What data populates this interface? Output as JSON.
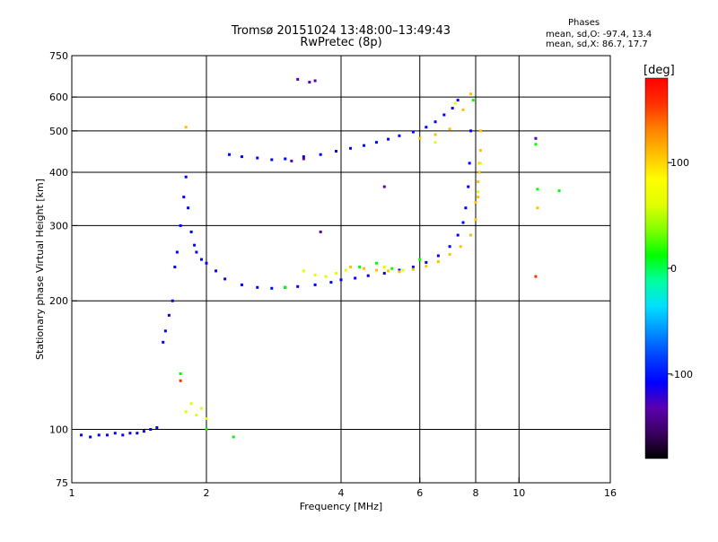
{
  "header": {
    "title_line1": "Tromsø 20151024 13:48:00–13:49:43",
    "title_line2": "RwPretec (8p)"
  },
  "phases": {
    "title": "Phases",
    "o_label": "mean, sd,O:",
    "o_values": "-97.4, 13.4",
    "x_label": "mean, sd,X:",
    "x_values": "86.7, 17.7"
  },
  "colorbar": {
    "title": "[deg]",
    "min": -180,
    "max": 180,
    "ticks": [
      {
        "value": 100,
        "label": "100"
      },
      {
        "value": 0,
        "label": "0"
      },
      {
        "value": -100,
        "label": "-100"
      }
    ],
    "colors": [
      "#000000",
      "#3a0060",
      "#5a00b0",
      "#0000ff",
      "#0040ff",
      "#0090ff",
      "#00e0ff",
      "#00ffa0",
      "#00ff00",
      "#80ff00",
      "#e0ff00",
      "#ffff00",
      "#ffc000",
      "#ff8000",
      "#ff3000",
      "#ff0000"
    ]
  },
  "chart_data": {
    "type": "scatter",
    "xlabel": "Frequency [MHz]",
    "ylabel": "Stationary phase Virtual Height [km]",
    "xscale": "log",
    "yscale": "log",
    "xlim": [
      1,
      16
    ],
    "ylim": [
      75,
      750
    ],
    "grid": true,
    "x_ticks": [
      1,
      2,
      4,
      6,
      8,
      10,
      16
    ],
    "y_ticks": [
      75,
      100,
      200,
      300,
      400,
      500,
      600,
      750
    ],
    "grid_x": [
      2,
      4,
      6,
      8,
      10
    ],
    "grid_y": [
      100,
      200,
      300,
      400,
      500,
      600
    ],
    "series": [
      {
        "phase": -100,
        "x": [
          1.05,
          1.1,
          1.15,
          1.2,
          1.25,
          1.3,
          1.35,
          1.4,
          1.45,
          1.5,
          1.55,
          1.6,
          1.62,
          1.65,
          1.68,
          1.7,
          1.72,
          1.75,
          1.78,
          1.8,
          1.82,
          1.85,
          1.88,
          1.9,
          1.95,
          2.0,
          2.1,
          2.2,
          2.4,
          2.6,
          2.8,
          3.0,
          3.2,
          3.5,
          3.8,
          4.0,
          4.3,
          4.6,
          5.0,
          5.4,
          5.8,
          6.2,
          6.6,
          7.0,
          7.3,
          7.5,
          7.6,
          7.7,
          7.75,
          7.8,
          2.25,
          2.4,
          2.6,
          2.8,
          3.0,
          3.3,
          3.6,
          3.9,
          4.2,
          4.5,
          4.8,
          5.1,
          5.4,
          5.8,
          6.2,
          6.5,
          6.8,
          7.1,
          7.3
        ],
        "y": [
          97,
          96,
          97,
          97,
          98,
          97,
          98,
          98,
          99,
          100,
          101,
          160,
          170,
          185,
          200,
          240,
          260,
          300,
          350,
          390,
          330,
          290,
          270,
          260,
          250,
          245,
          235,
          225,
          218,
          215,
          214,
          215,
          216,
          218,
          221,
          224,
          226,
          229,
          232,
          236,
          240,
          246,
          255,
          268,
          285,
          305,
          330,
          370,
          420,
          500,
          440,
          435,
          432,
          428,
          430,
          435,
          440,
          448,
          455,
          462,
          470,
          478,
          487,
          497,
          510,
          525,
          545,
          565,
          590
        ]
      },
      {
        "phase": 100,
        "x": [
          1.8,
          4.2,
          4.5,
          4.8,
          5.1,
          5.4,
          5.8,
          6.2,
          6.6,
          7.0,
          7.4,
          7.8,
          8.0,
          8.1,
          8.15,
          8.2,
          8.2,
          8.15,
          8.1,
          8.0,
          6.0,
          6.5,
          7.0,
          7.5,
          7.8,
          11.0
        ],
        "y": [
          510,
          240,
          238,
          236,
          235,
          234,
          237,
          241,
          247,
          257,
          268,
          285,
          310,
          350,
          400,
          450,
          500,
          420,
          380,
          340,
          480,
          490,
          505,
          560,
          610,
          330
        ]
      },
      {
        "phase": 50,
        "x": [
          3.3,
          3.5,
          3.7,
          3.9,
          4.1,
          1.8,
          1.85,
          1.9,
          1.95,
          2.0,
          8.1,
          8.2,
          5.0,
          5.5,
          6.5,
          7.2
        ],
        "y": [
          235,
          230,
          228,
          232,
          236,
          110,
          115,
          108,
          112,
          106,
          360,
          420,
          240,
          236,
          470,
          580
        ]
      },
      {
        "phase": 20,
        "x": [
          2.3,
          3.0,
          4.4,
          4.8,
          5.2,
          6.0,
          10.9,
          11.0,
          12.3,
          2.0,
          1.75,
          7.9
        ],
        "y": [
          96,
          215,
          240,
          245,
          238,
          250,
          465,
          365,
          362,
          100,
          135,
          590
        ]
      },
      {
        "phase": 160,
        "x": [
          10.9,
          1.75
        ],
        "y": [
          228,
          130
        ]
      },
      {
        "phase": -140,
        "x": [
          3.2,
          3.4,
          3.5,
          5.0,
          3.6,
          10.9,
          3.1,
          3.3
        ],
        "y": [
          660,
          650,
          655,
          370,
          290,
          480,
          425,
          430
        ]
      }
    ]
  }
}
